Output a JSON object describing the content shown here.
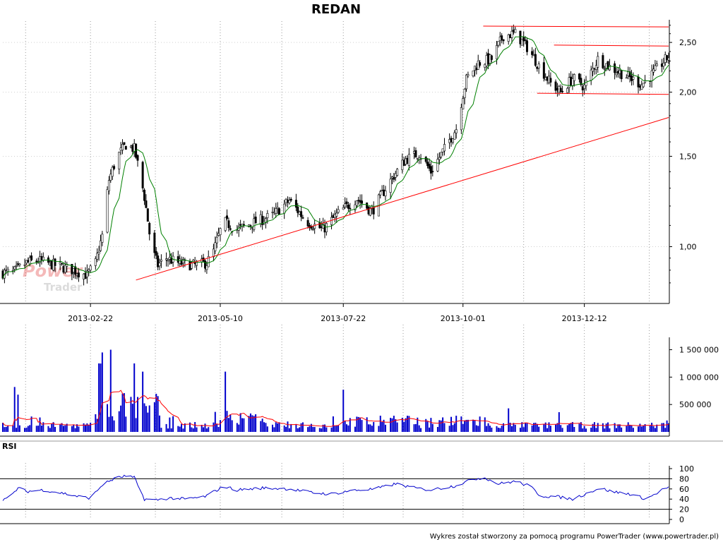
{
  "chart_data": [
    {
      "type": "candlestick",
      "title": "REDAN",
      "y_scale": "log",
      "ylim": [
        0.78,
        2.75
      ],
      "ticks_y": [
        "2,50",
        "2,00",
        "1,50",
        "1,00"
      ],
      "ticks_y_values": [
        2.5,
        2.0,
        1.5,
        1.0
      ],
      "x_tick_labels": [
        "2013-02-22",
        "2013-05-10",
        "2013-07-22",
        "2013-10-01",
        "2013-12-12"
      ],
      "x_range": [
        "2013-01-01",
        "2014-01-31"
      ],
      "grid": true,
      "close_anchors": [
        [
          "2013-01-01",
          0.89
        ],
        [
          "2013-01-07",
          0.89
        ],
        [
          "2013-01-15",
          0.93
        ],
        [
          "2013-01-22",
          0.94
        ],
        [
          "2013-02-01",
          0.92
        ],
        [
          "2013-02-12",
          0.9
        ],
        [
          "2013-02-20",
          0.88
        ],
        [
          "2013-02-25",
          0.93
        ],
        [
          "2013-03-01",
          1.05
        ],
        [
          "2013-03-05",
          1.35
        ],
        [
          "2013-03-10",
          1.5
        ],
        [
          "2013-03-15",
          1.58
        ],
        [
          "2013-03-20",
          1.55
        ],
        [
          "2013-03-26",
          1.25
        ],
        [
          "2013-03-30",
          1.0
        ],
        [
          "2013-04-03",
          0.92
        ],
        [
          "2013-04-08",
          0.95
        ],
        [
          "2013-04-15",
          0.93
        ],
        [
          "2013-04-25",
          0.92
        ],
        [
          "2013-05-02",
          0.93
        ],
        [
          "2013-05-06",
          0.98
        ],
        [
          "2013-05-12",
          1.12
        ],
        [
          "2013-05-20",
          1.08
        ],
        [
          "2013-06-01",
          1.12
        ],
        [
          "2013-06-10",
          1.15
        ],
        [
          "2013-06-20",
          1.23
        ],
        [
          "2013-06-30",
          1.12
        ],
        [
          "2013-07-10",
          1.08
        ],
        [
          "2013-07-20",
          1.17
        ],
        [
          "2013-07-30",
          1.24
        ],
        [
          "2013-08-08",
          1.17
        ],
        [
          "2013-08-18",
          1.33
        ],
        [
          "2013-08-28",
          1.48
        ],
        [
          "2013-09-05",
          1.52
        ],
        [
          "2013-09-12",
          1.4
        ],
        [
          "2013-09-20",
          1.55
        ],
        [
          "2013-09-27",
          1.7
        ],
        [
          "2013-10-03",
          2.12
        ],
        [
          "2013-10-10",
          2.28
        ],
        [
          "2013-10-18",
          2.32
        ],
        [
          "2013-10-25",
          2.58
        ],
        [
          "2013-11-01",
          2.6
        ],
        [
          "2013-11-08",
          2.45
        ],
        [
          "2013-11-15",
          2.25
        ],
        [
          "2013-11-22",
          2.08
        ],
        [
          "2013-11-28",
          2.0
        ],
        [
          "2013-12-05",
          2.13
        ],
        [
          "2013-12-12",
          2.05
        ],
        [
          "2013-12-20",
          2.32
        ],
        [
          "2013-12-28",
          2.23
        ],
        [
          "2014-01-05",
          2.16
        ],
        [
          "2014-01-15",
          2.07
        ],
        [
          "2014-01-22",
          2.18
        ],
        [
          "2014-01-31",
          2.35
        ]
      ],
      "trendlines": [
        {
          "color": "#ff0000",
          "from": [
            "2013-03-21",
            0.861
          ],
          "to": [
            "2014-01-31",
            1.785
          ]
        },
        {
          "color": "#ff0000",
          "from": [
            "2013-10-13",
            2.69
          ],
          "to": [
            "2014-01-31",
            2.68
          ]
        },
        {
          "color": "#ff0000",
          "from": [
            "2013-11-24",
            2.47
          ],
          "to": [
            "2014-01-31",
            2.46
          ]
        },
        {
          "color": "#ff0000",
          "from": [
            "2013-11-14",
            1.99
          ],
          "to": [
            "2014-01-31",
            1.98
          ]
        }
      ],
      "moving_average_color": "#008000",
      "candle_color": "#000000"
    },
    {
      "type": "bar",
      "ylim": [
        0,
        1700000
      ],
      "ticks_y": [
        "1 500 000",
        "1 000 000",
        "500 000"
      ],
      "ticks_y_values": [
        1500000,
        1000000,
        500000
      ],
      "bar_color": "#0000cc",
      "average_color": "#ff0000",
      "spikes": [
        [
          "2013-02-24",
          1670000
        ],
        [
          "2013-03-06",
          1500000
        ],
        [
          "2013-03-01",
          1450000
        ],
        [
          "2013-02-27",
          1250000
        ],
        [
          "2013-03-09",
          1150000
        ],
        [
          "2013-03-20",
          1250000
        ],
        [
          "2013-03-25",
          1100000
        ],
        [
          "2013-01-08",
          820000
        ],
        [
          "2013-01-10",
          680000
        ],
        [
          "2013-05-13",
          1100000
        ],
        [
          "2013-07-22",
          770000
        ],
        [
          "2013-10-28",
          430000
        ]
      ]
    },
    {
      "type": "line",
      "ylim": [
        0,
        100
      ],
      "ticks_y": [
        "100",
        "80",
        "60",
        "40",
        "20",
        "0"
      ],
      "ticks_y_values": [
        100,
        80,
        60,
        40,
        20,
        0
      ],
      "levels": [
        80,
        20
      ],
      "series": [
        {
          "color": "#0000cc",
          "points": [
            [
              "2013-01-01",
              40
            ],
            [
              "2013-01-05",
              42
            ],
            [
              "2013-01-10",
              62
            ],
            [
              "2013-01-15",
              55
            ],
            [
              "2013-01-25",
              58
            ],
            [
              "2013-02-05",
              52
            ],
            [
              "2013-02-15",
              45
            ],
            [
              "2013-02-22",
              42
            ],
            [
              "2013-03-01",
              68
            ],
            [
              "2013-03-08",
              80
            ],
            [
              "2013-03-14",
              85
            ],
            [
              "2013-03-20",
              82
            ],
            [
              "2013-03-26",
              40
            ],
            [
              "2013-04-01",
              38
            ],
            [
              "2013-04-10",
              42
            ],
            [
              "2013-04-20",
              40
            ],
            [
              "2013-05-01",
              45
            ],
            [
              "2013-05-12",
              65
            ],
            [
              "2013-05-20",
              58
            ],
            [
              "2013-06-05",
              62
            ],
            [
              "2013-06-20",
              60
            ],
            [
              "2013-07-05",
              52
            ],
            [
              "2013-07-15",
              50
            ],
            [
              "2013-07-25",
              56
            ],
            [
              "2013-08-10",
              60
            ],
            [
              "2013-08-22",
              70
            ],
            [
              "2013-09-02",
              62
            ],
            [
              "2013-09-12",
              58
            ],
            [
              "2013-09-26",
              66
            ],
            [
              "2013-10-08",
              80
            ],
            [
              "2013-10-14",
              82
            ],
            [
              "2013-10-22",
              70
            ],
            [
              "2013-11-01",
              75
            ],
            [
              "2013-11-10",
              65
            ],
            [
              "2013-11-16",
              46
            ],
            [
              "2013-11-25",
              45
            ],
            [
              "2013-12-05",
              40
            ],
            [
              "2013-12-14",
              52
            ],
            [
              "2013-12-21",
              62
            ],
            [
              "2013-12-28",
              55
            ],
            [
              "2014-01-08",
              50
            ],
            [
              "2014-01-18",
              40
            ],
            [
              "2014-01-28",
              60
            ],
            [
              "2014-01-31",
              62
            ]
          ]
        }
      ]
    }
  ],
  "rsi_label": "RSI",
  "watermark": {
    "main": "Power",
    "sub": "Trader"
  },
  "footer": "Wykres został stworzony za pomocą programu PowerTrader (www.powertrader.pl)"
}
